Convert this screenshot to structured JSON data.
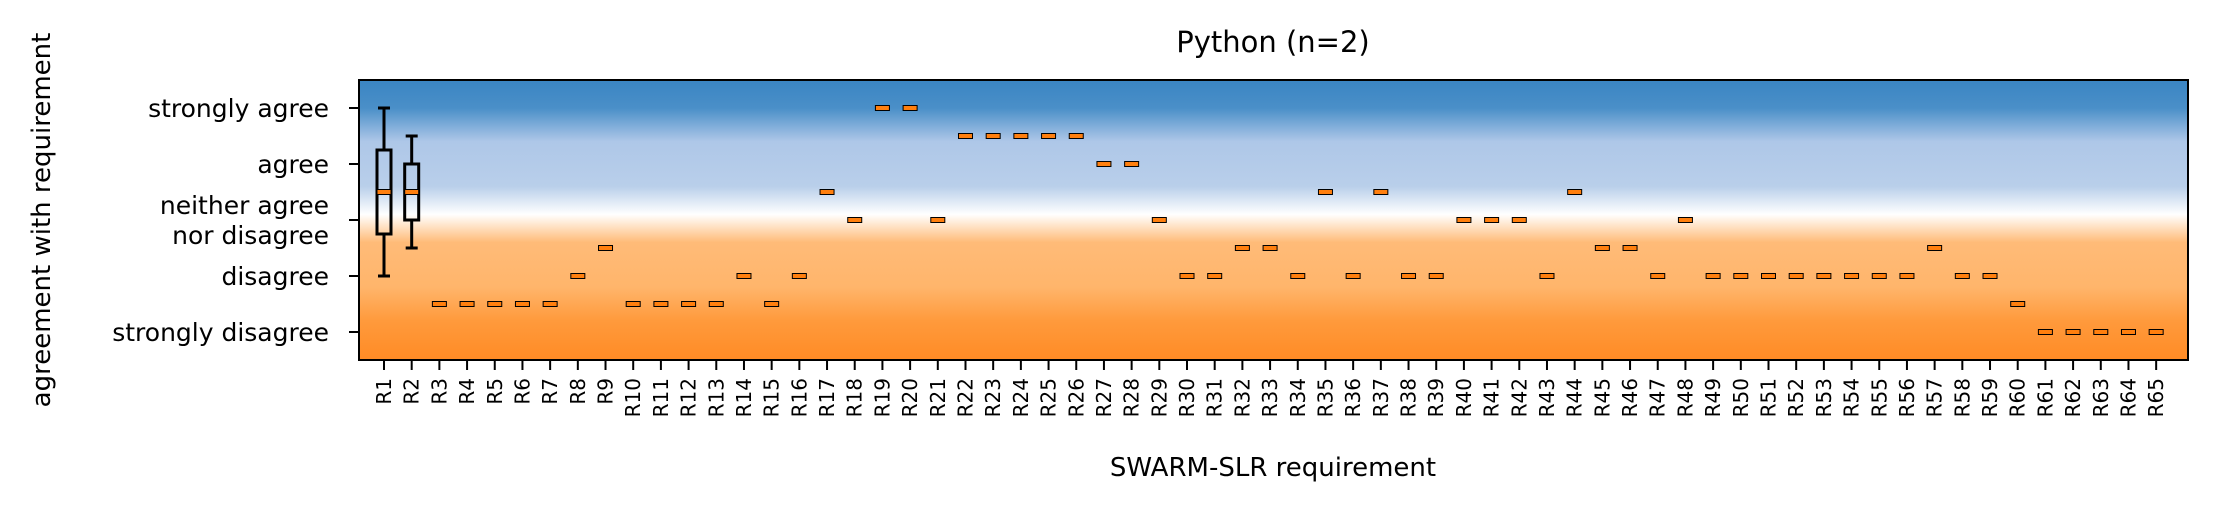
{
  "chart_data": {
    "type": "box",
    "title": "Python (n=2)",
    "xlabel": "SWARM-SLR requirement",
    "ylabel": "agreement with requirement",
    "ylim": [
      0.5,
      5.5
    ],
    "y_ticks": [
      {
        "value": 5,
        "label": "strongly agree"
      },
      {
        "value": 4,
        "label": "agree"
      },
      {
        "value": 3,
        "label": "neither agree\nnor disagree"
      },
      {
        "value": 2,
        "label": "disagree"
      },
      {
        "value": 1,
        "label": "strongly disagree"
      }
    ],
    "categories": [
      "R1",
      "R2",
      "R3",
      "R4",
      "R5",
      "R6",
      "R7",
      "R8",
      "R9",
      "R10",
      "R11",
      "R12",
      "R13",
      "R14",
      "R15",
      "R16",
      "R17",
      "R18",
      "R19",
      "R20",
      "R21",
      "R22",
      "R23",
      "R24",
      "R25",
      "R26",
      "R27",
      "R28",
      "R29",
      "R30",
      "R31",
      "R32",
      "R33",
      "R34",
      "R35",
      "R36",
      "R37",
      "R38",
      "R39",
      "R40",
      "R41",
      "R42",
      "R43",
      "R44",
      "R45",
      "R46",
      "R47",
      "R48",
      "R49",
      "R50",
      "R51",
      "R52",
      "R53",
      "R54",
      "R55",
      "R56",
      "R57",
      "R58",
      "R59",
      "R60",
      "R61",
      "R62",
      "R63",
      "R64",
      "R65"
    ],
    "medians": [
      3.5,
      3.5,
      1.5,
      1.5,
      1.5,
      1.5,
      1.5,
      2,
      2.5,
      1.5,
      1.5,
      1.5,
      1.5,
      2,
      1.5,
      2,
      3.5,
      3,
      5,
      5,
      3,
      4.5,
      4.5,
      4.5,
      4.5,
      4.5,
      4,
      4,
      3,
      2,
      2,
      2.5,
      2.5,
      2,
      3.5,
      2,
      3.5,
      2,
      2,
      3,
      3,
      3,
      2,
      3.5,
      2.5,
      2.5,
      2,
      3,
      2,
      2,
      2,
      2,
      2,
      2,
      2,
      2,
      2.5,
      2,
      2,
      1.5,
      1,
      1,
      1,
      1,
      1
    ],
    "boxes": [
      {
        "category": "R1",
        "q1": 2.75,
        "q3": 4.25,
        "whisker_low": 2,
        "whisker_high": 5
      },
      {
        "category": "R2",
        "q1": 3,
        "q3": 4,
        "whisker_low": 2.5,
        "whisker_high": 4.5
      }
    ],
    "background": {
      "type": "gradient",
      "colors": {
        "strong_agree": "#3a85c3",
        "agree": "#aec7e8",
        "neutral": "#ffffff",
        "disagree": "#ffbb78",
        "strong_disagree": "#ff8b25"
      }
    },
    "median_color": "#ff7f0e",
    "grid": false
  }
}
